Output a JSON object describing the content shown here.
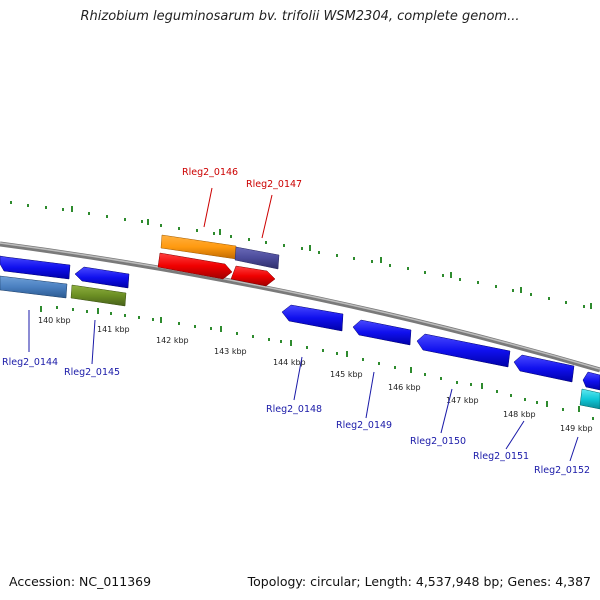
{
  "title": "Rhizobium leguminosarum bv. trifolii WSM2304, complete genom...",
  "footer": {
    "accession": "Accession: NC_011369",
    "summary": "Topology: circular; Length: 4,537,948 bp; Genes: 4,387"
  },
  "colors": {
    "backbone": "#7a7a7a",
    "tick_dots": "#2e8b2e",
    "label_red": "#cc0000",
    "label_blue": "#1a1aa8"
  },
  "ticks": [
    "140 kbp",
    "141 kbp",
    "142 kbp",
    "143 kbp",
    "144 kbp",
    "145 kbp",
    "146 kbp",
    "147 kbp",
    "148 kbp",
    "149 kbp"
  ],
  "top_labels": [
    "Rleg2_0146",
    "Rleg2_0147"
  ],
  "bottom_labels": [
    "Rleg2_0144",
    "Rleg2_0145",
    "Rleg2_0148",
    "Rleg2_0149",
    "Rleg2_0150",
    "Rleg2_0151",
    "Rleg2_0152"
  ]
}
